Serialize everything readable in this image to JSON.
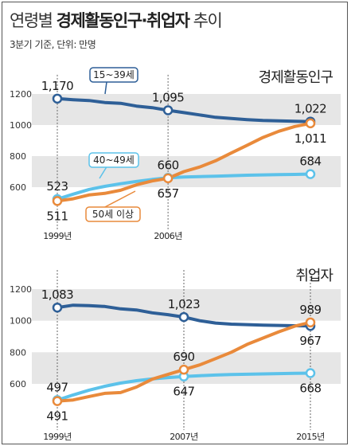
{
  "header": {
    "title_light": "연령별 ",
    "title_bold": "경제활동인구·취업자",
    "title_light2": " 추이",
    "subtitle": "3분기 기준, 단위: 만명"
  },
  "colors": {
    "age_15_39": "#2e5f97",
    "age_40_49": "#5cc2ea",
    "age_50_plus": "#e98a3b",
    "band": "#e6e6e6"
  },
  "chart_data": [
    {
      "type": "line",
      "title": "경제활동인구",
      "ylim": [
        500,
        1250
      ],
      "yticks": [
        600,
        800,
        1000,
        1200
      ],
      "x_tick_labels": [
        "1999년",
        "2006년"
      ],
      "series": [
        {
          "name": "15~39세",
          "color": "#2e5f97",
          "points": [
            [
              1999,
              1170
            ],
            [
              2000,
              1163
            ],
            [
              2001,
              1158
            ],
            [
              2002,
              1145
            ],
            [
              2003,
              1140
            ],
            [
              2004,
              1122
            ],
            [
              2005,
              1112
            ],
            [
              2006,
              1095
            ],
            [
              2007,
              1080
            ],
            [
              2008,
              1065
            ],
            [
              2009,
              1050
            ],
            [
              2010,
              1042
            ],
            [
              2011,
              1035
            ],
            [
              2012,
              1030
            ],
            [
              2013,
              1027
            ],
            [
              2014,
              1024
            ],
            [
              2015,
              1022
            ]
          ],
          "labels": [
            {
              "x": 1999,
              "text": "1,170",
              "pos": "above"
            },
            {
              "x": 2006,
              "text": "1,095",
              "pos": "above"
            },
            {
              "x": 2015,
              "text": "1,022",
              "pos": "above"
            }
          ]
        },
        {
          "name": "40~49세",
          "color": "#5cc2ea",
          "points": [
            [
              1999,
              523
            ],
            [
              2000,
              555
            ],
            [
              2001,
              585
            ],
            [
              2002,
              605
            ],
            [
              2003,
              622
            ],
            [
              2004,
              637
            ],
            [
              2005,
              650
            ],
            [
              2006,
              660
            ],
            [
              2007,
              665
            ],
            [
              2008,
              668
            ],
            [
              2009,
              671
            ],
            [
              2010,
              674
            ],
            [
              2011,
              677
            ],
            [
              2012,
              679
            ],
            [
              2013,
              681
            ],
            [
              2014,
              682
            ],
            [
              2015,
              684
            ]
          ],
          "labels": [
            {
              "x": 1999,
              "text": "523",
              "pos": "above"
            },
            {
              "x": 2006,
              "text": "660",
              "pos": "above"
            },
            {
              "x": 2015,
              "text": "684",
              "pos": "above"
            }
          ]
        },
        {
          "name": "50세 이상",
          "color": "#e98a3b",
          "points": [
            [
              1999,
              511
            ],
            [
              2000,
              525
            ],
            [
              2001,
              550
            ],
            [
              2002,
              560
            ],
            [
              2003,
              580
            ],
            [
              2004,
              615
            ],
            [
              2005,
              640
            ],
            [
              2006,
              657
            ],
            [
              2007,
              700
            ],
            [
              2008,
              730
            ],
            [
              2009,
              770
            ],
            [
              2010,
              820
            ],
            [
              2011,
              870
            ],
            [
              2012,
              920
            ],
            [
              2013,
              960
            ],
            [
              2014,
              990
            ],
            [
              2015,
              1011
            ]
          ],
          "labels": [
            {
              "x": 1999,
              "text": "511",
              "pos": "below"
            },
            {
              "x": 2006,
              "text": "657",
              "pos": "below"
            },
            {
              "x": 2015,
              "text": "1,011",
              "pos": "below"
            }
          ]
        }
      ],
      "callouts": [
        {
          "text": "15~39세",
          "series": 0
        },
        {
          "text": "40~49세",
          "series": 1
        },
        {
          "text": "50세 이상",
          "series": 2
        }
      ]
    },
    {
      "type": "line",
      "title": "취업자",
      "ylim": [
        500,
        1250
      ],
      "yticks": [
        600,
        800,
        1000,
        1200
      ],
      "x_tick_labels": [
        "1999년",
        "2007년",
        "2015년"
      ],
      "series": [
        {
          "name": "15~39세",
          "color": "#2e5f97",
          "points": [
            [
              1999,
              1083
            ],
            [
              2000,
              1098
            ],
            [
              2001,
              1095
            ],
            [
              2002,
              1090
            ],
            [
              2003,
              1075
            ],
            [
              2004,
              1068
            ],
            [
              2005,
              1050
            ],
            [
              2006,
              1038
            ],
            [
              2007,
              1023
            ],
            [
              2008,
              1000
            ],
            [
              2009,
              985
            ],
            [
              2010,
              978
            ],
            [
              2011,
              975
            ],
            [
              2012,
              972
            ],
            [
              2013,
              970
            ],
            [
              2014,
              968
            ],
            [
              2015,
              967
            ]
          ],
          "labels": [
            {
              "x": 1999,
              "text": "1,083",
              "pos": "above"
            },
            {
              "x": 2007,
              "text": "1,023",
              "pos": "above"
            },
            {
              "x": 2015,
              "text": "967",
              "pos": "below"
            }
          ]
        },
        {
          "name": "40~49세",
          "color": "#5cc2ea",
          "points": [
            [
              1999,
              497
            ],
            [
              2000,
              530
            ],
            [
              2001,
              560
            ],
            [
              2002,
              585
            ],
            [
              2003,
              605
            ],
            [
              2004,
              620
            ],
            [
              2005,
              632
            ],
            [
              2006,
              640
            ],
            [
              2007,
              647
            ],
            [
              2008,
              652
            ],
            [
              2009,
              656
            ],
            [
              2010,
              659
            ],
            [
              2011,
              661
            ],
            [
              2012,
              663
            ],
            [
              2013,
              665
            ],
            [
              2014,
              667
            ],
            [
              2015,
              668
            ]
          ],
          "labels": [
            {
              "x": 1999,
              "text": "497",
              "pos": "above"
            },
            {
              "x": 2007,
              "text": "647",
              "pos": "below"
            },
            {
              "x": 2015,
              "text": "668",
              "pos": "below"
            }
          ]
        },
        {
          "name": "50세 이상",
          "color": "#e98a3b",
          "points": [
            [
              1999,
              491
            ],
            [
              2000,
              498
            ],
            [
              2001,
              520
            ],
            [
              2002,
              540
            ],
            [
              2003,
              545
            ],
            [
              2004,
              580
            ],
            [
              2005,
              630
            ],
            [
              2006,
              660
            ],
            [
              2007,
              690
            ],
            [
              2008,
              720
            ],
            [
              2009,
              760
            ],
            [
              2010,
              800
            ],
            [
              2011,
              850
            ],
            [
              2012,
              890
            ],
            [
              2013,
              930
            ],
            [
              2014,
              965
            ],
            [
              2015,
              989
            ]
          ],
          "labels": [
            {
              "x": 1999,
              "text": "491",
              "pos": "below"
            },
            {
              "x": 2007,
              "text": "690",
              "pos": "above"
            },
            {
              "x": 2015,
              "text": "989",
              "pos": "above"
            }
          ]
        }
      ],
      "callouts": []
    }
  ]
}
